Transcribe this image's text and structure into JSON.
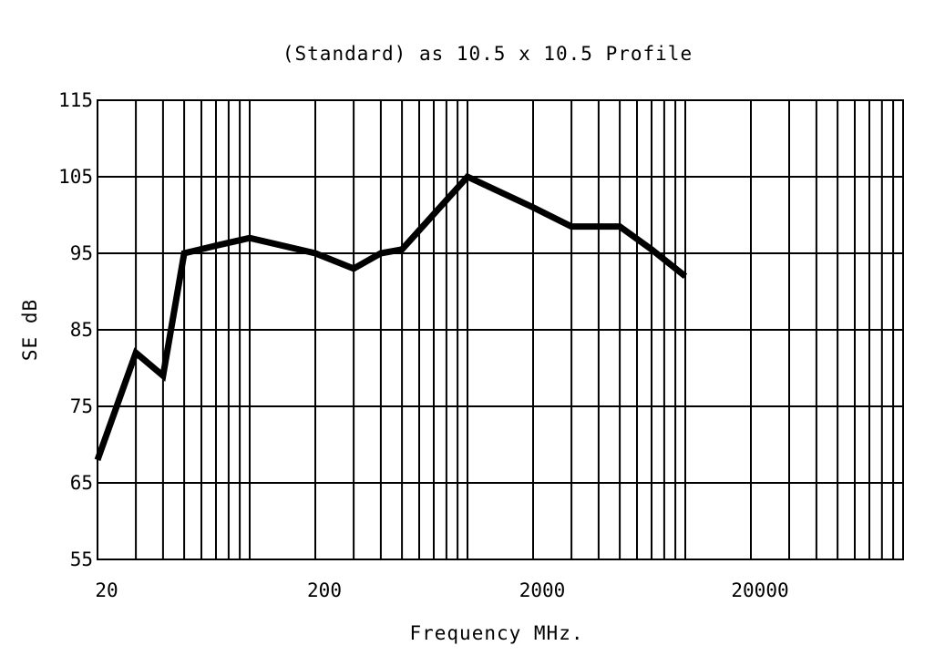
{
  "chart_data": {
    "type": "line",
    "title": "(Standard) as 10.5 x 10.5 Profile",
    "xlabel": "Frequency MHz.",
    "ylabel": "SE dB",
    "x_scale": "log",
    "xlim": [
      20,
      100000
    ],
    "ylim": [
      55,
      115
    ],
    "x_ticks": [
      20,
      200,
      2000,
      20000
    ],
    "x_tick_labels": [
      "20",
      "200",
      "2000",
      "20000"
    ],
    "y_ticks": [
      55,
      65,
      75,
      85,
      95,
      105,
      115
    ],
    "y_tick_labels": [
      "55",
      "65",
      "75",
      "85",
      "95",
      "105",
      "115"
    ],
    "grid": true,
    "x_gridlines": [
      30,
      40,
      50,
      60,
      70,
      80,
      90,
      100,
      200,
      300,
      400,
      500,
      600,
      700,
      800,
      900,
      1000,
      2000,
      3000,
      4000,
      5000,
      6000,
      7000,
      8000,
      9000,
      10000,
      20000,
      30000,
      40000,
      50000,
      60000,
      70000,
      80000,
      90000,
      100000
    ],
    "series": [
      {
        "color": "#000000",
        "x": [
          20,
          30,
          40,
          50,
          70,
          100,
          200,
          300,
          400,
          500,
          1000,
          2000,
          3000,
          5000,
          7000,
          10000
        ],
        "y": [
          68,
          82,
          79,
          95,
          96,
          97,
          95,
          93,
          95,
          95.5,
          105,
          101,
          98.5,
          98.5,
          95.5,
          92
        ]
      }
    ]
  }
}
